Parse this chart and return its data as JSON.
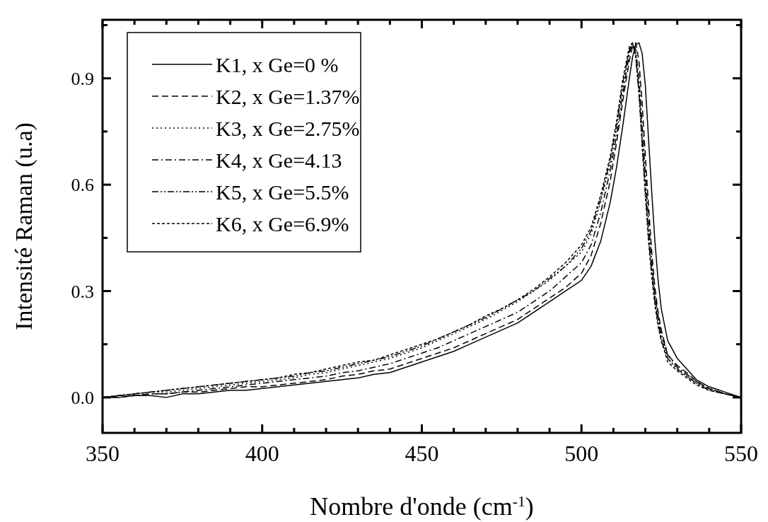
{
  "chart_data": {
    "type": "line",
    "xlabel": "Nombre d'onde (cm$^{-1}$)",
    "ylabel": "Intensité Raman (u.a)",
    "x": [
      350,
      355,
      360,
      365,
      370,
      375,
      380,
      385,
      390,
      395,
      400,
      405,
      410,
      415,
      420,
      425,
      430,
      435,
      440,
      445,
      450,
      455,
      460,
      465,
      470,
      475,
      480,
      485,
      490,
      495,
      500,
      503,
      506,
      509,
      511,
      513,
      515,
      516,
      517,
      518,
      519,
      520,
      521,
      522,
      523,
      524,
      525,
      527,
      530,
      533,
      536,
      540,
      545,
      550
    ],
    "series": [
      {
        "name": "K1, x Ge=0 %",
        "color": "#000000",
        "line_style": "solid",
        "values": [
          0.0,
          0.0,
          0.005,
          0.005,
          0.0,
          0.01,
          0.01,
          0.015,
          0.02,
          0.02,
          0.025,
          0.03,
          0.035,
          0.04,
          0.045,
          0.05,
          0.055,
          0.065,
          0.07,
          0.085,
          0.1,
          0.115,
          0.13,
          0.15,
          0.17,
          0.19,
          0.21,
          0.24,
          0.27,
          0.3,
          0.33,
          0.37,
          0.44,
          0.55,
          0.65,
          0.77,
          0.9,
          0.96,
          0.995,
          1.0,
          0.97,
          0.88,
          0.73,
          0.58,
          0.44,
          0.33,
          0.25,
          0.16,
          0.11,
          0.08,
          0.05,
          0.03,
          0.015,
          0.0
        ]
      },
      {
        "name": "K2, x Ge=1.37%",
        "color": "#000000",
        "line_style": "dashed",
        "values": [
          0.0,
          0.0,
          0.005,
          0.01,
          0.01,
          0.015,
          0.015,
          0.02,
          0.025,
          0.03,
          0.03,
          0.035,
          0.04,
          0.045,
          0.05,
          0.06,
          0.065,
          0.075,
          0.08,
          0.095,
          0.11,
          0.125,
          0.14,
          0.16,
          0.18,
          0.2,
          0.22,
          0.25,
          0.28,
          0.31,
          0.35,
          0.4,
          0.49,
          0.61,
          0.72,
          0.84,
          0.95,
          0.99,
          1.0,
          0.95,
          0.83,
          0.68,
          0.54,
          0.41,
          0.31,
          0.24,
          0.19,
          0.12,
          0.09,
          0.07,
          0.045,
          0.025,
          0.01,
          0.0
        ]
      },
      {
        "name": "K3, x Ge=2.75%",
        "color": "#000000",
        "line_style": "dotted",
        "values": [
          0.0,
          0.005,
          0.01,
          0.015,
          0.015,
          0.02,
          0.025,
          0.03,
          0.035,
          0.04,
          0.045,
          0.05,
          0.055,
          0.065,
          0.07,
          0.08,
          0.09,
          0.1,
          0.11,
          0.125,
          0.14,
          0.16,
          0.18,
          0.2,
          0.22,
          0.245,
          0.27,
          0.3,
          0.33,
          0.37,
          0.41,
          0.46,
          0.55,
          0.66,
          0.76,
          0.88,
          0.98,
          1.0,
          0.97,
          0.88,
          0.74,
          0.6,
          0.47,
          0.36,
          0.28,
          0.22,
          0.17,
          0.11,
          0.08,
          0.06,
          0.04,
          0.025,
          0.01,
          0.0
        ]
      },
      {
        "name": "K4, x Ge=4.13",
        "color": "#000000",
        "line_style": "dashdot",
        "values": [
          0.0,
          0.005,
          0.005,
          0.01,
          0.01,
          0.015,
          0.02,
          0.025,
          0.03,
          0.035,
          0.04,
          0.045,
          0.05,
          0.055,
          0.06,
          0.07,
          0.075,
          0.085,
          0.095,
          0.11,
          0.125,
          0.14,
          0.16,
          0.18,
          0.2,
          0.22,
          0.24,
          0.27,
          0.3,
          0.34,
          0.38,
          0.43,
          0.52,
          0.64,
          0.74,
          0.86,
          0.97,
          1.0,
          0.98,
          0.9,
          0.77,
          0.63,
          0.5,
          0.38,
          0.29,
          0.23,
          0.18,
          0.12,
          0.085,
          0.065,
          0.045,
          0.025,
          0.01,
          0.0
        ]
      },
      {
        "name": "K5, x Ge=5.5%",
        "color": "#000000",
        "line_style": "dashdotdot",
        "values": [
          0.0,
          0.005,
          0.01,
          0.015,
          0.02,
          0.025,
          0.03,
          0.035,
          0.04,
          0.045,
          0.05,
          0.055,
          0.06,
          0.07,
          0.075,
          0.085,
          0.095,
          0.105,
          0.115,
          0.13,
          0.145,
          0.165,
          0.185,
          0.205,
          0.225,
          0.25,
          0.275,
          0.3,
          0.335,
          0.37,
          0.42,
          0.47,
          0.56,
          0.67,
          0.77,
          0.89,
          0.98,
          1.0,
          0.96,
          0.86,
          0.72,
          0.58,
          0.45,
          0.35,
          0.27,
          0.21,
          0.16,
          0.11,
          0.08,
          0.06,
          0.04,
          0.02,
          0.01,
          0.0
        ]
      },
      {
        "name": "K6, x Ge=6.9%",
        "color": "#000000",
        "line_style": "shortdash",
        "values": [
          0.0,
          0.005,
          0.01,
          0.015,
          0.02,
          0.025,
          0.03,
          0.035,
          0.04,
          0.045,
          0.05,
          0.055,
          0.065,
          0.07,
          0.08,
          0.09,
          0.1,
          0.105,
          0.12,
          0.135,
          0.15,
          0.165,
          0.185,
          0.205,
          0.23,
          0.25,
          0.275,
          0.305,
          0.34,
          0.38,
          0.43,
          0.48,
          0.57,
          0.68,
          0.78,
          0.9,
          0.99,
          1.0,
          0.96,
          0.86,
          0.71,
          0.57,
          0.44,
          0.34,
          0.26,
          0.2,
          0.16,
          0.1,
          0.075,
          0.055,
          0.035,
          0.02,
          0.01,
          0.0
        ]
      }
    ],
    "xlim": [
      350,
      550
    ],
    "xticks": [
      350,
      {
        "value": 360,
        "label": null
      },
      {
        "value": 370,
        "label": null
      },
      {
        "value": 380,
        "label": null
      },
      {
        "value": 390,
        "label": null
      },
      400,
      {
        "value": 410,
        "label": null
      },
      {
        "value": 420,
        "label": null
      },
      {
        "value": 430,
        "label": null
      },
      {
        "value": 440,
        "label": null
      },
      450,
      {
        "value": 460,
        "label": null
      },
      {
        "value": 470,
        "label": null
      },
      {
        "value": 480,
        "label": null
      },
      {
        "value": 490,
        "label": null
      },
      500,
      {
        "value": 510,
        "label": null
      },
      {
        "value": 520,
        "label": null
      },
      {
        "value": 530,
        "label": null
      },
      {
        "value": 540,
        "label": null
      },
      550
    ],
    "ylim": [
      -0.1,
      1.065
    ],
    "yticks": [
      {
        "value": 0,
        "label": "0.0"
      },
      {
        "value": 0.15,
        "label": null
      },
      0.3,
      {
        "value": 0.45,
        "label": null
      },
      0.6,
      {
        "value": 0.75,
        "label": null
      },
      0.9,
      {
        "value": 1.05,
        "label": null
      }
    ],
    "legend": "top left",
    "marker": "none",
    "grid": false
  }
}
